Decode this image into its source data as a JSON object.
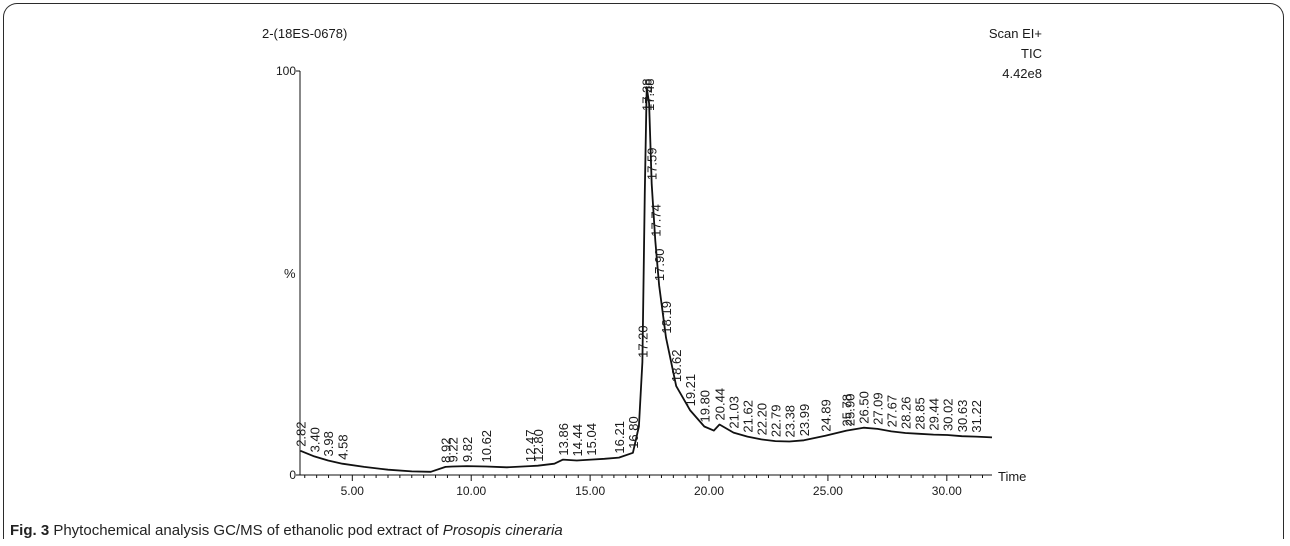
{
  "chart_data": {
    "type": "line",
    "sample_id": "2-(18ES-0678)",
    "header_right": [
      "Scan EI+",
      "TIC",
      "4.42e8"
    ],
    "xlabel": "Time",
    "ylabel": "%",
    "xlim": [
      2.8,
      31.9
    ],
    "ylim": [
      0,
      100
    ],
    "x_ticks": [
      5,
      10,
      15,
      20,
      25,
      30
    ],
    "x_tick_labels": [
      "5.00",
      "10.00",
      "15.00",
      "20.00",
      "25.00",
      "30.00"
    ],
    "y_tick_labels": [
      "0",
      "100"
    ],
    "series": [
      {
        "points": [
          [
            2.82,
            6.0
          ],
          [
            3.4,
            4.6
          ],
          [
            3.98,
            3.6
          ],
          [
            4.58,
            2.8
          ],
          [
            5.5,
            2.0
          ],
          [
            6.5,
            1.3
          ],
          [
            7.5,
            0.9
          ],
          [
            8.3,
            0.8
          ],
          [
            8.92,
            2.0
          ],
          [
            9.22,
            2.1
          ],
          [
            9.82,
            2.2
          ],
          [
            10.62,
            2.1
          ],
          [
            11.5,
            1.9
          ],
          [
            12.47,
            2.2
          ],
          [
            12.8,
            2.3
          ],
          [
            13.5,
            2.8
          ],
          [
            13.86,
            3.8
          ],
          [
            14.44,
            3.6
          ],
          [
            15.04,
            3.8
          ],
          [
            15.6,
            4.0
          ],
          [
            16.21,
            4.3
          ],
          [
            16.8,
            5.5
          ],
          [
            17.05,
            12
          ],
          [
            17.2,
            28
          ],
          [
            17.3,
            70
          ],
          [
            17.38,
            96
          ],
          [
            17.48,
            92
          ],
          [
            17.59,
            72
          ],
          [
            17.74,
            58
          ],
          [
            17.9,
            47
          ],
          [
            18.19,
            34
          ],
          [
            18.62,
            22
          ],
          [
            19.21,
            16
          ],
          [
            19.8,
            12
          ],
          [
            20.2,
            11
          ],
          [
            20.44,
            12.5
          ],
          [
            21.03,
            10.5
          ],
          [
            21.62,
            9.5
          ],
          [
            22.2,
            8.8
          ],
          [
            22.79,
            8.4
          ],
          [
            23.38,
            8.3
          ],
          [
            23.99,
            8.6
          ],
          [
            24.89,
            9.7
          ],
          [
            25.78,
            11
          ],
          [
            26.5,
            11.7
          ],
          [
            27.09,
            11.4
          ],
          [
            27.67,
            10.8
          ],
          [
            28.26,
            10.4
          ],
          [
            28.85,
            10.2
          ],
          [
            29.44,
            10.0
          ],
          [
            30.02,
            9.9
          ],
          [
            30.63,
            9.6
          ],
          [
            31.22,
            9.5
          ],
          [
            31.9,
            9.3
          ]
        ]
      }
    ],
    "peak_labels": [
      {
        "t": 2.82,
        "label": "2.82"
      },
      {
        "t": 3.4,
        "label": "3.40"
      },
      {
        "t": 3.98,
        "label": "3.98"
      },
      {
        "t": 4.58,
        "label": "4.58"
      },
      {
        "t": 8.92,
        "label": "8.92"
      },
      {
        "t": 9.22,
        "label": "9.22"
      },
      {
        "t": 9.82,
        "label": "9.82"
      },
      {
        "t": 10.62,
        "label": "10.62"
      },
      {
        "t": 12.47,
        "label": "12.47"
      },
      {
        "t": 12.8,
        "label": "12.80"
      },
      {
        "t": 13.86,
        "label": "13.86"
      },
      {
        "t": 14.44,
        "label": "14.44"
      },
      {
        "t": 15.04,
        "label": "15.04"
      },
      {
        "t": 16.21,
        "label": "16.21"
      },
      {
        "t": 16.8,
        "label": "16.80"
      },
      {
        "t": 17.2,
        "label": "17.20"
      },
      {
        "t": 17.38,
        "label": "17.38"
      },
      {
        "t": 17.48,
        "label": "17.48"
      },
      {
        "t": 17.59,
        "label": "17.59"
      },
      {
        "t": 17.74,
        "label": "17.74"
      },
      {
        "t": 17.9,
        "label": "17.90"
      },
      {
        "t": 18.19,
        "label": "18.19"
      },
      {
        "t": 18.62,
        "label": "18.62"
      },
      {
        "t": 19.21,
        "label": "19.21"
      },
      {
        "t": 19.8,
        "label": "19.80"
      },
      {
        "t": 20.44,
        "label": "20.44"
      },
      {
        "t": 21.03,
        "label": "21.03"
      },
      {
        "t": 21.62,
        "label": "21.62"
      },
      {
        "t": 22.2,
        "label": "22.20"
      },
      {
        "t": 22.79,
        "label": "22.79"
      },
      {
        "t": 23.38,
        "label": "23.38"
      },
      {
        "t": 23.99,
        "label": "23.99"
      },
      {
        "t": 24.89,
        "label": "24.89"
      },
      {
        "t": 25.78,
        "label": "25.78"
      },
      {
        "t": 25.9,
        "label": "25.90"
      },
      {
        "t": 26.5,
        "label": "26.50"
      },
      {
        "t": 27.09,
        "label": "27.09"
      },
      {
        "t": 27.67,
        "label": "27.67"
      },
      {
        "t": 28.26,
        "label": "28.26"
      },
      {
        "t": 28.85,
        "label": "28.85"
      },
      {
        "t": 29.44,
        "label": "29.44"
      },
      {
        "t": 30.02,
        "label": "30.02"
      },
      {
        "t": 30.63,
        "label": "30.63"
      },
      {
        "t": 31.22,
        "label": "31.22"
      }
    ]
  },
  "caption": {
    "fig_label": "Fig. 3",
    "text": " Phytochemical analysis GC/MS of ethanolic pod extract of ",
    "species": "Prosopis cineraria"
  },
  "colors": {
    "trace": "#111111",
    "text": "#1a1a1a"
  }
}
